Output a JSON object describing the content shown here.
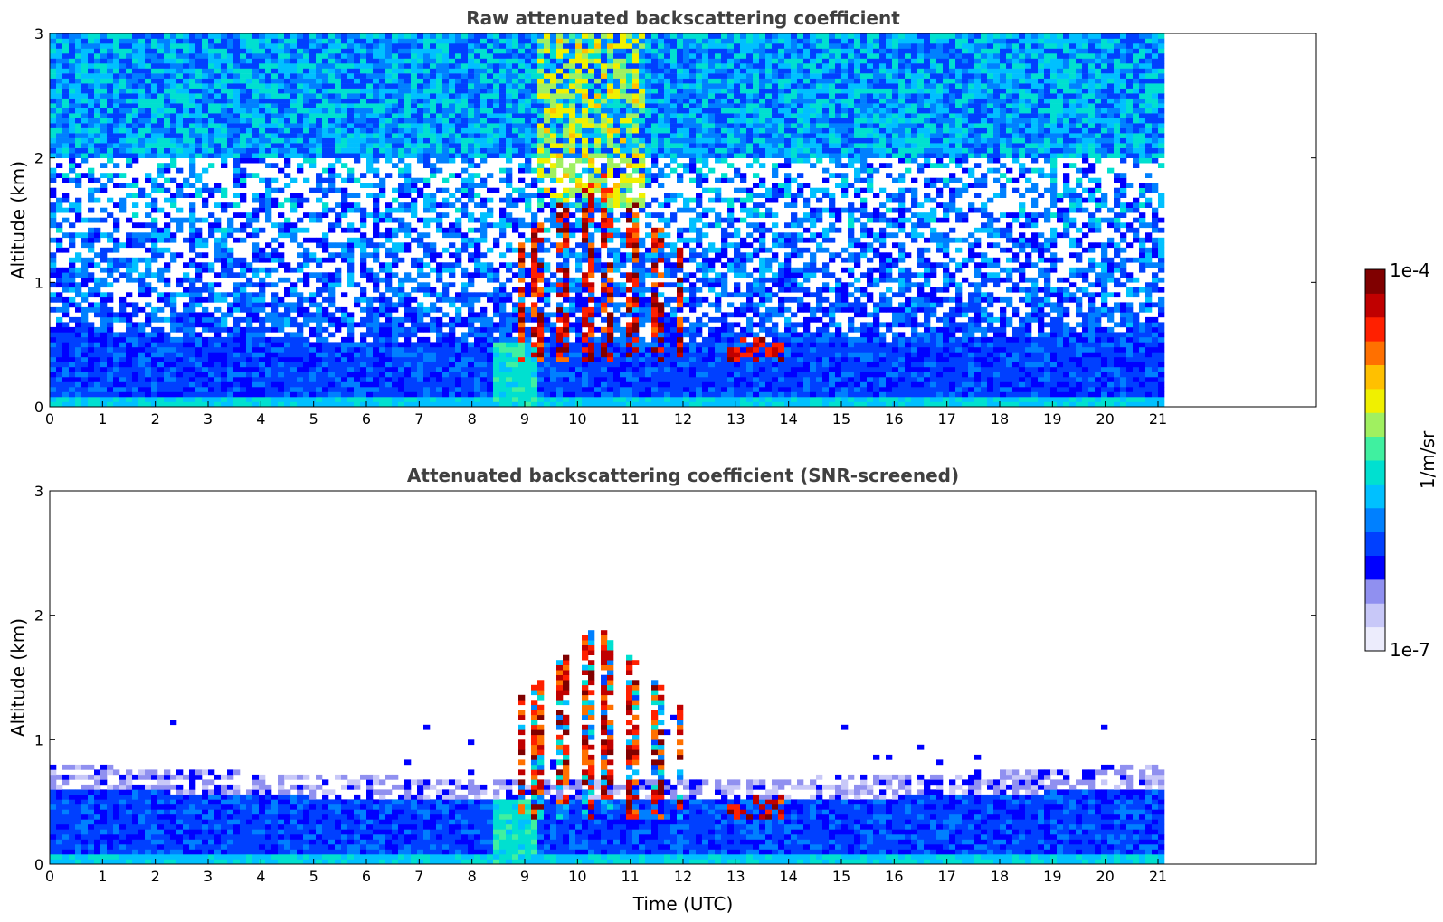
{
  "chart_data": [
    {
      "type": "heatmap",
      "title": "Raw attenuated backscattering coefficient",
      "xlabel": "",
      "ylabel": "Altitude (km)",
      "xlim": [
        0,
        24
      ],
      "ylim": [
        0,
        3
      ],
      "xticks": [
        "0",
        "1",
        "2",
        "3",
        "4",
        "5",
        "6",
        "7",
        "8",
        "9",
        "10",
        "11",
        "12",
        "13",
        "14",
        "15",
        "16",
        "17",
        "18",
        "19",
        "20",
        "21"
      ],
      "yticks": [
        "0",
        "1",
        "2",
        "3"
      ],
      "data_x_range": [
        0,
        21
      ],
      "features": [
        {
          "description_kind": "boundary_layer",
          "top_km_start": 0.55,
          "top_km_end": 0.45
        },
        {
          "description_kind": "cloud_region",
          "x_range": [
            8.5,
            12
          ],
          "altitude_range_km": [
            0.3,
            1.9
          ]
        }
      ]
    },
    {
      "type": "heatmap",
      "title": "Attenuated backscattering coefficient (SNR-screened)",
      "xlabel": "Time (UTC)",
      "ylabel": "Altitude (km)",
      "xlim": [
        0,
        24
      ],
      "ylim": [
        0,
        3
      ],
      "xticks": [
        "0",
        "1",
        "2",
        "3",
        "4",
        "5",
        "6",
        "7",
        "8",
        "9",
        "10",
        "11",
        "12",
        "13",
        "14",
        "15",
        "16",
        "17",
        "18",
        "19",
        "20",
        "21"
      ],
      "yticks": [
        "0",
        "1",
        "2",
        "3"
      ],
      "data_x_range": [
        0,
        21
      ]
    }
  ],
  "colorbar": {
    "min_label": "1e-7",
    "max_label": "1e-4",
    "unit_label": "1/m/sr",
    "colors": [
      "#ececfc",
      "#c8c8f8",
      "#9090f0",
      "#0000ff",
      "#0040ff",
      "#0080ff",
      "#00c0ff",
      "#00e0d0",
      "#40f0a0",
      "#a0f060",
      "#f0f000",
      "#ffc000",
      "#ff7000",
      "#ff2000",
      "#c00000",
      "#800000"
    ]
  }
}
